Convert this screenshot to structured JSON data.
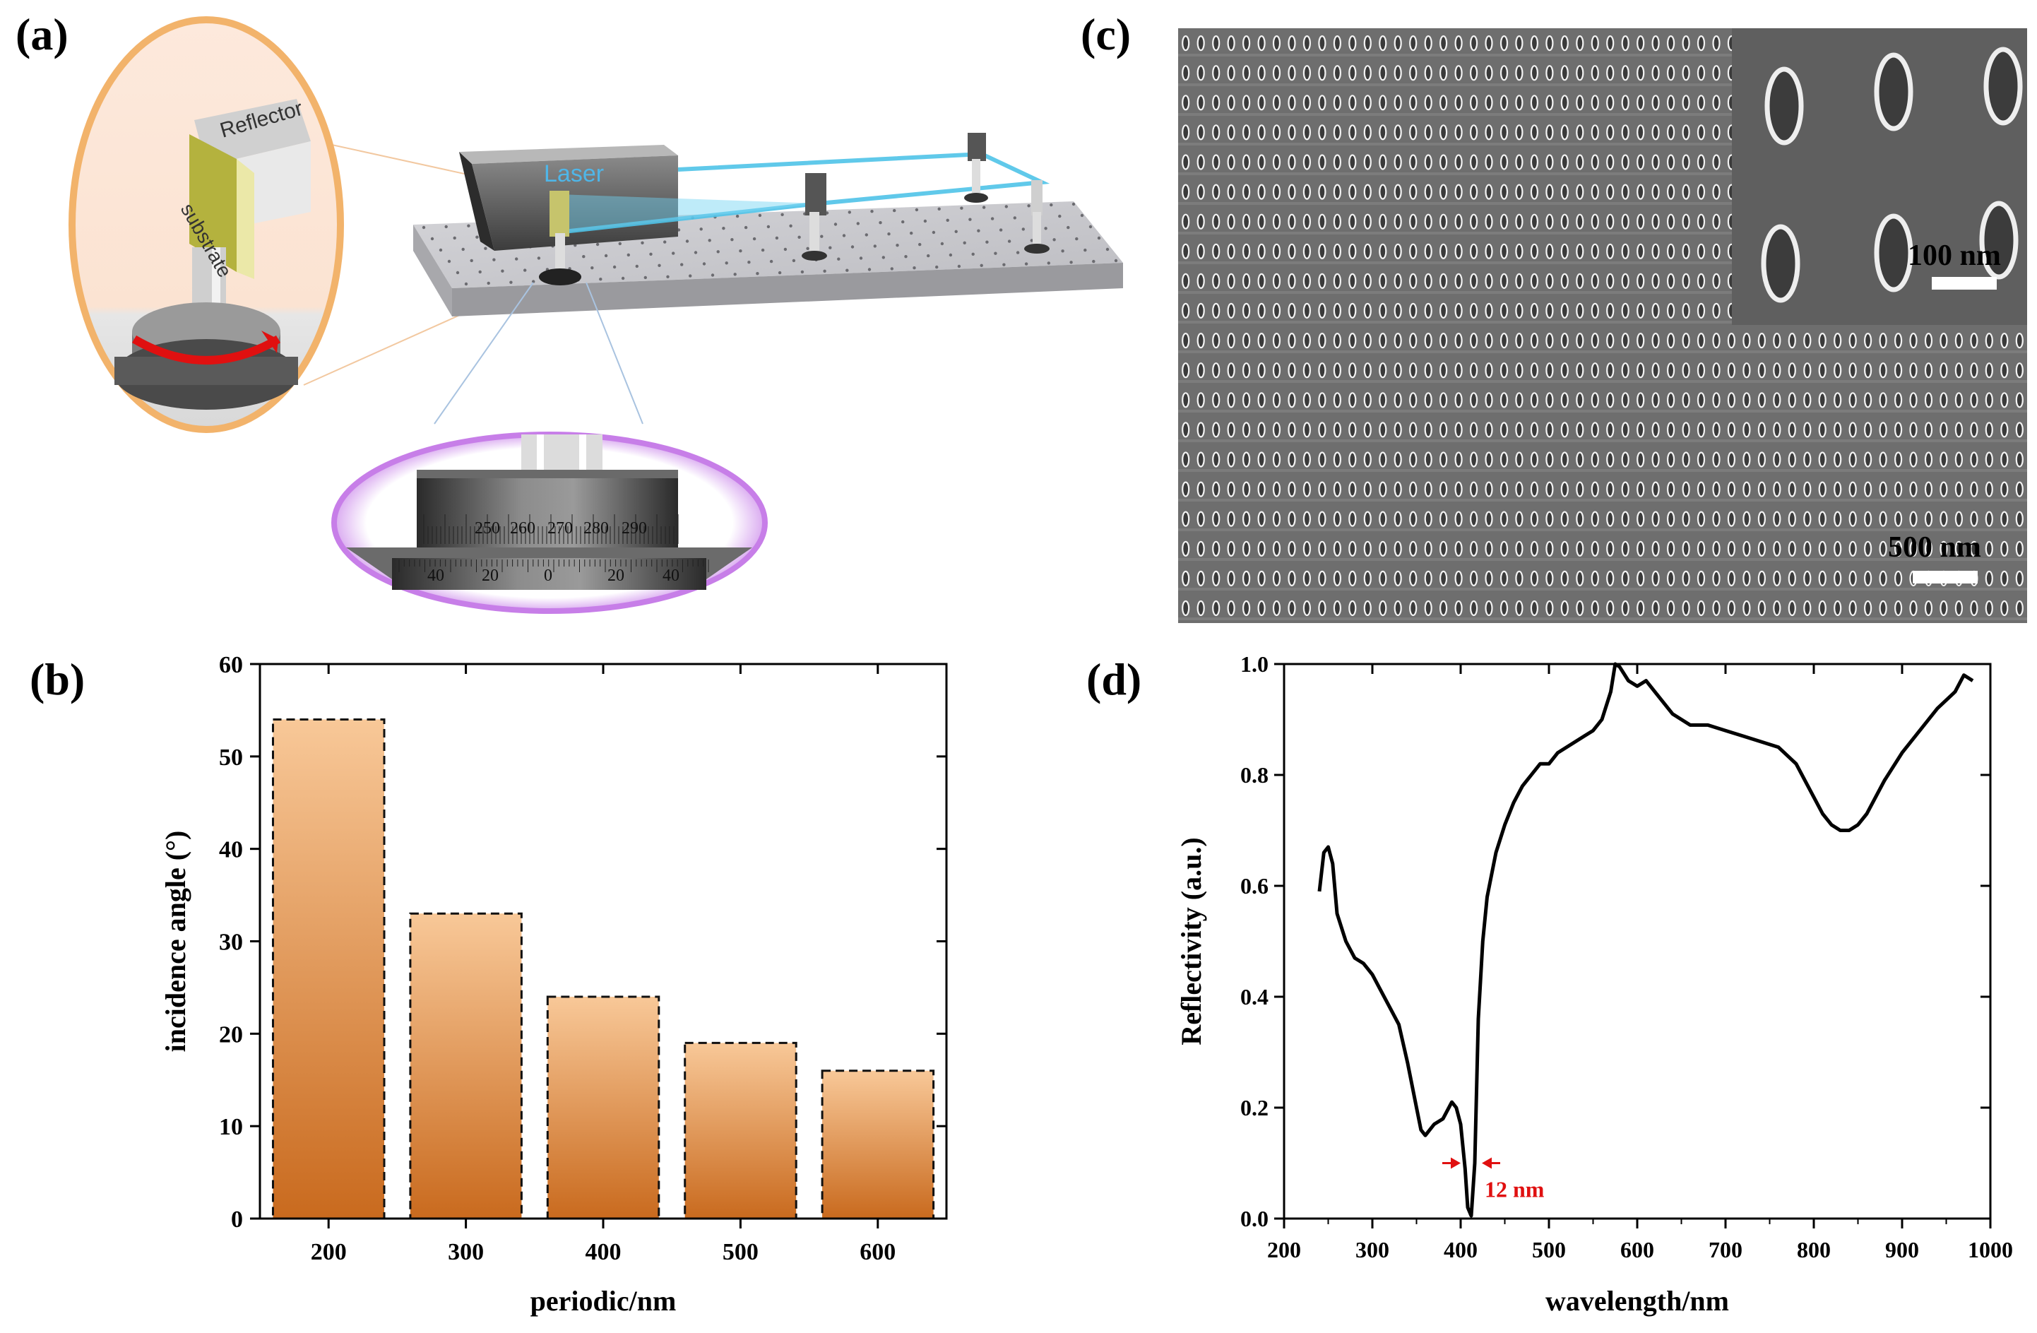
{
  "panels": {
    "a": {
      "label": "(a)",
      "reflector_label": "Reflector",
      "substrate_label": "substrate",
      "laser_label": "Laser",
      "dial_top_ticks": [
        "250",
        "260",
        "270",
        "280",
        "290"
      ],
      "dial_bottom_ticks": [
        "40",
        "20",
        "0",
        "20",
        "40"
      ],
      "colors": {
        "laser_beam": "#4fc3e8",
        "zoom1_ring": "#f2b36b",
        "zoom2_ring": "#c77ee8",
        "rotation_arrow": "#e01010"
      }
    },
    "b": {
      "label": "(b)",
      "chart_data": {
        "type": "bar",
        "categories": [
          "200",
          "300",
          "400",
          "500",
          "600"
        ],
        "values": [
          54,
          33,
          24,
          19,
          16
        ],
        "xlabel": "periodic/nm",
        "ylabel": "incidence angle (°)",
        "ylim": [
          0,
          60
        ],
        "yticks": [
          "0",
          "10",
          "20",
          "30",
          "40",
          "50",
          "60"
        ],
        "bar_gradient": [
          "#f8c898",
          "#c96a1e"
        ]
      }
    },
    "c": {
      "label": "(c)",
      "scale_inset": "100 nm",
      "scale_main": "500 nm"
    },
    "d": {
      "label": "(d)",
      "annotation": "12 nm",
      "chart_data": {
        "type": "line",
        "xlabel": "wavelength/nm",
        "ylabel": "Reflectivity (a.u.)",
        "xlim": [
          200,
          1000
        ],
        "ylim": [
          0,
          1.0
        ],
        "xticks": [
          "200",
          "300",
          "400",
          "500",
          "600",
          "700",
          "800",
          "900",
          "1000"
        ],
        "yticks": [
          "0.0",
          "0.2",
          "0.4",
          "0.6",
          "0.8",
          "1.0"
        ],
        "series": [
          {
            "name": "reflectivity",
            "x": [
              240,
              245,
              250,
              255,
              260,
              270,
              280,
              290,
              300,
              310,
              320,
              330,
              340,
              350,
              355,
              360,
              370,
              380,
              390,
              395,
              400,
              405,
              408,
              412,
              416,
              420,
              425,
              430,
              440,
              450,
              460,
              470,
              480,
              490,
              500,
              510,
              520,
              530,
              540,
              550,
              560,
              570,
              575,
              580,
              590,
              600,
              610,
              620,
              640,
              660,
              680,
              700,
              720,
              740,
              760,
              780,
              790,
              800,
              810,
              820,
              830,
              840,
              850,
              860,
              870,
              880,
              900,
              920,
              940,
              960,
              970,
              980
            ],
            "y": [
              0.59,
              0.66,
              0.67,
              0.64,
              0.55,
              0.5,
              0.47,
              0.46,
              0.44,
              0.41,
              0.38,
              0.35,
              0.28,
              0.2,
              0.16,
              0.15,
              0.17,
              0.18,
              0.21,
              0.2,
              0.17,
              0.09,
              0.02,
              0.005,
              0.1,
              0.36,
              0.5,
              0.58,
              0.66,
              0.71,
              0.75,
              0.78,
              0.8,
              0.82,
              0.82,
              0.84,
              0.85,
              0.86,
              0.87,
              0.88,
              0.9,
              0.95,
              1.0,
              0.995,
              0.97,
              0.96,
              0.97,
              0.95,
              0.91,
              0.89,
              0.89,
              0.88,
              0.87,
              0.86,
              0.85,
              0.82,
              0.79,
              0.76,
              0.73,
              0.71,
              0.7,
              0.7,
              0.71,
              0.73,
              0.76,
              0.79,
              0.84,
              0.88,
              0.92,
              0.95,
              0.98,
              0.97
            ]
          }
        ]
      }
    }
  }
}
